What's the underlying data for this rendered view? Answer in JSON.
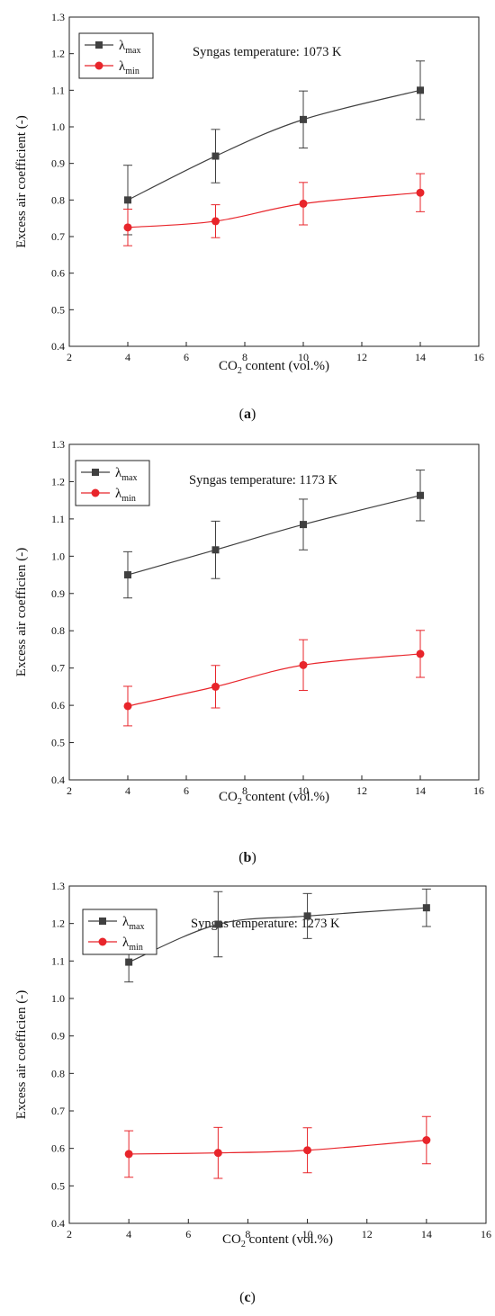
{
  "chart_data": [
    {
      "type": "line",
      "panel_label": "a",
      "annotation": "Syngas temperature: 1073 K",
      "xlabel": {
        "main": "CO",
        "sub": "2",
        "rest": " content (vol.%)"
      },
      "ylabel": "Excess air coefficient (-)",
      "xlim": [
        2,
        16
      ],
      "ylim": [
        0.4,
        1.3
      ],
      "xticks": [
        2,
        4,
        6,
        8,
        10,
        12,
        14,
        16
      ],
      "yticks": [
        0.4,
        0.5,
        0.6,
        0.7,
        0.8,
        0.9,
        1.0,
        1.1,
        1.2,
        1.3
      ],
      "x": [
        4,
        7,
        10,
        14
      ],
      "legend_placement": "top-left",
      "series": [
        {
          "legend_main": "λ",
          "legend_sub": "max",
          "color": "#404040",
          "marker": "square",
          "values": [
            0.8,
            0.92,
            1.02,
            1.1
          ],
          "errors": [
            0.095,
            0.073,
            0.078,
            0.08
          ]
        },
        {
          "legend_main": "λ",
          "legend_sub": "min",
          "color": "#e8252b",
          "marker": "circle",
          "values": [
            0.725,
            0.742,
            0.79,
            0.82
          ],
          "errors": [
            0.05,
            0.045,
            0.058,
            0.052
          ]
        }
      ]
    },
    {
      "type": "line",
      "panel_label": "b",
      "annotation": "Syngas temperature: 1173 K",
      "xlabel": {
        "main": "CO",
        "sub": "2",
        "rest": " content (vol.%)"
      },
      "ylabel": "Excess air coefficien (-)",
      "xlim": [
        2,
        16
      ],
      "ylim": [
        0.4,
        1.3
      ],
      "xticks": [
        2,
        4,
        6,
        8,
        10,
        12,
        14,
        16
      ],
      "yticks": [
        0.4,
        0.5,
        0.6,
        0.7,
        0.8,
        0.9,
        1.0,
        1.1,
        1.2,
        1.3
      ],
      "x": [
        4,
        7,
        10,
        14
      ],
      "legend_placement": "top-left",
      "series": [
        {
          "legend_main": "λ",
          "legend_sub": "max",
          "color": "#404040",
          "marker": "square",
          "values": [
            0.95,
            1.017,
            1.085,
            1.163
          ],
          "errors": [
            0.062,
            0.077,
            0.068,
            0.068
          ]
        },
        {
          "legend_main": "λ",
          "legend_sub": "min",
          "color": "#e8252b",
          "marker": "circle",
          "values": [
            0.598,
            0.65,
            0.708,
            0.738
          ],
          "errors": [
            0.053,
            0.057,
            0.068,
            0.063
          ]
        }
      ]
    },
    {
      "type": "line",
      "panel_label": "c",
      "annotation": "Syngas temperature: 1273 K",
      "xlabel": {
        "main": "CO",
        "sub": "2",
        "rest": " content (vol.%)"
      },
      "ylabel": "Excess air coefficien (-)",
      "xlim": [
        2,
        16
      ],
      "ylim": [
        0.4,
        1.3
      ],
      "xticks": [
        2,
        4,
        6,
        8,
        10,
        12,
        14,
        16
      ],
      "yticks": [
        0.4,
        0.5,
        0.6,
        0.7,
        0.8,
        0.9,
        1.0,
        1.1,
        1.2,
        1.3
      ],
      "x": [
        4,
        7,
        10,
        14
      ],
      "legend_placement": "middle-left",
      "series": [
        {
          "legend_main": "λ",
          "legend_sub": "max",
          "color": "#404040",
          "marker": "square",
          "values": [
            1.097,
            1.198,
            1.22,
            1.242
          ],
          "errors": [
            0.053,
            0.087,
            0.06,
            0.05
          ]
        },
        {
          "legend_main": "λ",
          "legend_sub": "min",
          "color": "#e8252b",
          "marker": "circle",
          "values": [
            0.585,
            0.588,
            0.595,
            0.622
          ],
          "errors": [
            0.062,
            0.068,
            0.06,
            0.063
          ]
        }
      ]
    }
  ]
}
